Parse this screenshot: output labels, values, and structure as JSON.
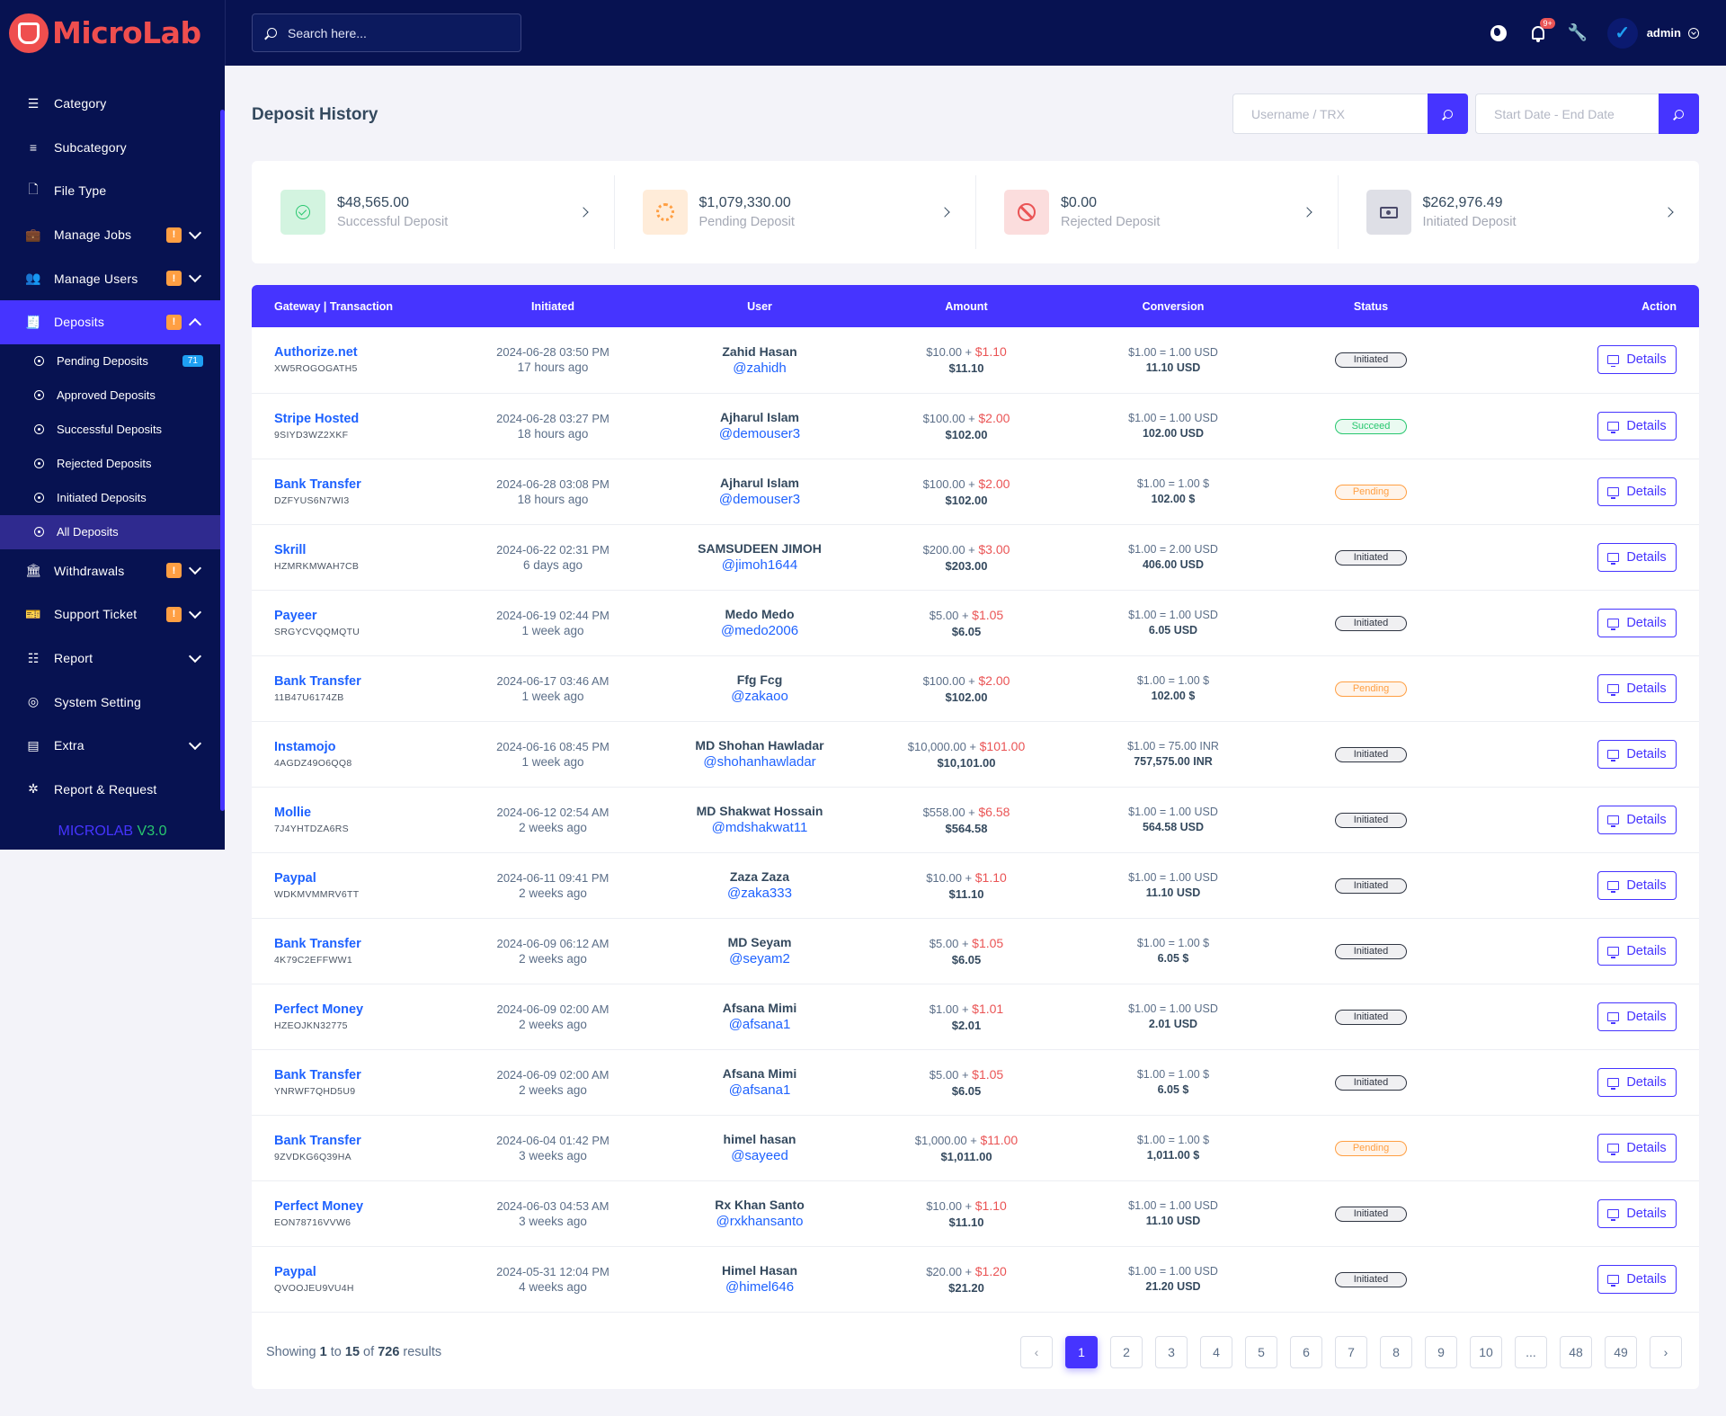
{
  "brand": {
    "name": "MicroLab",
    "version_name": "MICROLAB",
    "version_num": "V3.0"
  },
  "search": {
    "placeholder": "Search here..."
  },
  "topbar": {
    "notification_count": "9+",
    "admin_name": "admin",
    "avatar_initial": "✓"
  },
  "sidebar": {
    "items": [
      {
        "label": "Category",
        "icon": "list-icon"
      },
      {
        "label": "Subcategory",
        "icon": "menu-icon"
      },
      {
        "label": "File Type",
        "icon": "file-icon"
      },
      {
        "label": "Manage Jobs",
        "icon": "briefcase-icon",
        "badge": "!"
      },
      {
        "label": "Manage Users",
        "icon": "users-icon",
        "badge": "!"
      },
      {
        "label": "Deposits",
        "icon": "invoice-icon",
        "badge": "!"
      },
      {
        "label": "Withdrawals",
        "icon": "bank-icon",
        "badge": "!"
      },
      {
        "label": "Support Ticket",
        "icon": "ticket-icon",
        "badge": "!"
      },
      {
        "label": "Report",
        "icon": "list-ol-icon"
      },
      {
        "label": "System Setting",
        "icon": "life-ring-icon"
      },
      {
        "label": "Extra",
        "icon": "server-icon"
      },
      {
        "label": "Report & Request",
        "icon": "bug-icon"
      }
    ],
    "deposits_sub": [
      {
        "label": "Pending Deposits",
        "count": "71"
      },
      {
        "label": "Approved Deposits"
      },
      {
        "label": "Successful Deposits"
      },
      {
        "label": "Rejected Deposits"
      },
      {
        "label": "Initiated Deposits"
      },
      {
        "label": "All Deposits"
      }
    ]
  },
  "page": {
    "title": "Deposit History",
    "filter_user_placeholder": "Username / TRX",
    "filter_date_placeholder": "Start Date - End Date"
  },
  "widgets": [
    {
      "amount": "$48,565.00",
      "label": "Successful Deposit"
    },
    {
      "amount": "$1,079,330.00",
      "label": "Pending Deposit"
    },
    {
      "amount": "$0.00",
      "label": "Rejected Deposit"
    },
    {
      "amount": "$262,976.49",
      "label": "Initiated Deposit"
    }
  ],
  "table": {
    "headers": [
      "Gateway | Transaction",
      "Initiated",
      "User",
      "Amount",
      "Conversion",
      "Status",
      "Action"
    ],
    "details_label": "Details",
    "rows": [
      {
        "gateway": "Authorize.net",
        "trx": "XW5ROGOGATH5",
        "date": "2024-06-28 03:50 PM",
        "ago": "17 hours ago",
        "user": "Zahid Hasan",
        "handle": "@zahidh",
        "amount": "$10.00 + ",
        "fee": "$1.10",
        "total": "$11.10",
        "conv": "$1.00 = 1.00 USD",
        "conv_total": "11.10 USD",
        "status": "Initiated"
      },
      {
        "gateway": "Stripe Hosted",
        "trx": "9SIYD3WZ2XKF",
        "date": "2024-06-28 03:27 PM",
        "ago": "18 hours ago",
        "user": "Ajharul Islam",
        "handle": "@demouser3",
        "amount": "$100.00 + ",
        "fee": "$2.00",
        "total": "$102.00",
        "conv": "$1.00 = 1.00 USD",
        "conv_total": "102.00 USD",
        "status": "Succeed"
      },
      {
        "gateway": "Bank Transfer",
        "trx": "DZFYUS6N7WI3",
        "date": "2024-06-28 03:08 PM",
        "ago": "18 hours ago",
        "user": "Ajharul Islam",
        "handle": "@demouser3",
        "amount": "$100.00 + ",
        "fee": "$2.00",
        "total": "$102.00",
        "conv": "$1.00 = 1.00 $",
        "conv_total": "102.00 $",
        "status": "Pending"
      },
      {
        "gateway": "Skrill",
        "trx": "HZMRKMWAH7CB",
        "date": "2024-06-22 02:31 PM",
        "ago": "6 days ago",
        "user": "SAMSUDEEN JIMOH",
        "handle": "@jimoh1644",
        "amount": "$200.00 + ",
        "fee": "$3.00",
        "total": "$203.00",
        "conv": "$1.00 = 2.00 USD",
        "conv_total": "406.00 USD",
        "status": "Initiated"
      },
      {
        "gateway": "Payeer",
        "trx": "SRGYCVQQMQTU",
        "date": "2024-06-19 02:44 PM",
        "ago": "1 week ago",
        "user": "Medo Medo",
        "handle": "@medo2006",
        "amount": "$5.00 + ",
        "fee": "$1.05",
        "total": "$6.05",
        "conv": "$1.00 = 1.00 USD",
        "conv_total": "6.05 USD",
        "status": "Initiated"
      },
      {
        "gateway": "Bank Transfer",
        "trx": "11B47U6174ZB",
        "date": "2024-06-17 03:46 AM",
        "ago": "1 week ago",
        "user": "Ffg Fcg",
        "handle": "@zakaoo",
        "amount": "$100.00 + ",
        "fee": "$2.00",
        "total": "$102.00",
        "conv": "$1.00 = 1.00 $",
        "conv_total": "102.00 $",
        "status": "Pending"
      },
      {
        "gateway": "Instamojo",
        "trx": "4AGDZ49O6QQ8",
        "date": "2024-06-16 08:45 PM",
        "ago": "1 week ago",
        "user": "MD Shohan Hawladar",
        "handle": "@shohanhawladar",
        "amount": "$10,000.00 + ",
        "fee": "$101.00",
        "total": "$10,101.00",
        "conv": "$1.00 = 75.00 INR",
        "conv_total": "757,575.00 INR",
        "status": "Initiated"
      },
      {
        "gateway": "Mollie",
        "trx": "7J4YHTDZA6RS",
        "date": "2024-06-12 02:54 AM",
        "ago": "2 weeks ago",
        "user": "MD Shakwat Hossain",
        "handle": "@mdshakwat11",
        "amount": "$558.00 + ",
        "fee": "$6.58",
        "total": "$564.58",
        "conv": "$1.00 = 1.00 USD",
        "conv_total": "564.58 USD",
        "status": "Initiated"
      },
      {
        "gateway": "Paypal",
        "trx": "WDKMVMMRV6TT",
        "date": "2024-06-11 09:41 PM",
        "ago": "2 weeks ago",
        "user": "Zaza Zaza",
        "handle": "@zaka333",
        "amount": "$10.00 + ",
        "fee": "$1.10",
        "total": "$11.10",
        "conv": "$1.00 = 1.00 USD",
        "conv_total": "11.10 USD",
        "status": "Initiated"
      },
      {
        "gateway": "Bank Transfer",
        "trx": "4K79C2EFFWW1",
        "date": "2024-06-09 06:12 AM",
        "ago": "2 weeks ago",
        "user": "MD Seyam",
        "handle": "@seyam2",
        "amount": "$5.00 + ",
        "fee": "$1.05",
        "total": "$6.05",
        "conv": "$1.00 = 1.00 $",
        "conv_total": "6.05 $",
        "status": "Initiated"
      },
      {
        "gateway": "Perfect Money",
        "trx": "HZEOJKN32775",
        "date": "2024-06-09 02:00 AM",
        "ago": "2 weeks ago",
        "user": "Afsana Mimi",
        "handle": "@afsana1",
        "amount": "$1.00 + ",
        "fee": "$1.01",
        "total": "$2.01",
        "conv": "$1.00 = 1.00 USD",
        "conv_total": "2.01 USD",
        "status": "Initiated"
      },
      {
        "gateway": "Bank Transfer",
        "trx": "YNRWF7QHD5U9",
        "date": "2024-06-09 02:00 AM",
        "ago": "2 weeks ago",
        "user": "Afsana Mimi",
        "handle": "@afsana1",
        "amount": "$5.00 + ",
        "fee": "$1.05",
        "total": "$6.05",
        "conv": "$1.00 = 1.00 $",
        "conv_total": "6.05 $",
        "status": "Initiated"
      },
      {
        "gateway": "Bank Transfer",
        "trx": "9ZVDKG6Q39HA",
        "date": "2024-06-04 01:42 PM",
        "ago": "3 weeks ago",
        "user": "himel hasan",
        "handle": "@sayeed",
        "amount": "$1,000.00 + ",
        "fee": "$11.00",
        "total": "$1,011.00",
        "conv": "$1.00 = 1.00 $",
        "conv_total": "1,011.00 $",
        "status": "Pending"
      },
      {
        "gateway": "Perfect Money",
        "trx": "EON78716VVW6",
        "date": "2024-06-03 04:53 AM",
        "ago": "3 weeks ago",
        "user": "Rx Khan Santo",
        "handle": "@rxkhansanto",
        "amount": "$10.00 + ",
        "fee": "$1.10",
        "total": "$11.10",
        "conv": "$1.00 = 1.00 USD",
        "conv_total": "11.10 USD",
        "status": "Initiated"
      },
      {
        "gateway": "Paypal",
        "trx": "QVOOJEU9VU4H",
        "date": "2024-05-31 12:04 PM",
        "ago": "4 weeks ago",
        "user": "Himel Hasan",
        "handle": "@himel646",
        "amount": "$20.00 + ",
        "fee": "$1.20",
        "total": "$21.20",
        "conv": "$1.00 = 1.00 USD",
        "conv_total": "21.20 USD",
        "status": "Initiated"
      }
    ]
  },
  "pagination": {
    "showing_prefix": "Showing ",
    "from": "1",
    "to_word": " to ",
    "to": "15",
    "of_word": " of ",
    "total": "726",
    "suffix": " results",
    "prev": "‹",
    "next": "›",
    "pages": [
      "1",
      "2",
      "3",
      "4",
      "5",
      "6",
      "7",
      "8",
      "9",
      "10",
      "...",
      "48",
      "49"
    ],
    "current": "1"
  },
  "colors": {
    "primary": "#4634ff",
    "sidebar": "#071251",
    "brand": "#ef4e4e",
    "success": "#28c76f",
    "warning": "#ff9f43",
    "danger": "#ea5455"
  }
}
